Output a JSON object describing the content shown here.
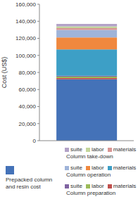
{
  "chart_data": {
    "type": "bar",
    "stacked": true,
    "ylabel": "Cost (US$)",
    "categories": [
      null
    ],
    "ylim": [
      0,
      160000
    ],
    "yticks": [
      0,
      {
        "value": 20000,
        "label": "20,000"
      },
      {
        "value": 40000,
        "label": "40,000"
      },
      {
        "value": 60000,
        "label": "60,000"
      },
      {
        "value": 80000,
        "label": "80,000"
      },
      {
        "value": 100000,
        "label": "100,000"
      },
      {
        "value": 120000,
        "label": "120,000"
      },
      {
        "value": 140000,
        "label": "140,000"
      },
      {
        "value": 160000,
        "label": "160,000"
      }
    ],
    "grid": false,
    "tick_labels": "y",
    "series": [
      {
        "name": "Prepacked column and resin cost",
        "color": "#4472b8",
        "values": [
          72000
        ]
      },
      {
        "group": "Column preparation",
        "name": "materials",
        "color": "#c0504d",
        "values": [
          1500
        ]
      },
      {
        "group": "Column preparation",
        "name": "labor",
        "color": "#9bbb59",
        "values": [
          1500
        ]
      },
      {
        "group": "Column preparation",
        "name": "suite",
        "color": "#8064a2",
        "values": [
          1000
        ]
      },
      {
        "group": "Column operation",
        "name": "materials",
        "color": "#3d9fc6",
        "values": [
          31000
        ]
      },
      {
        "group": "Column operation",
        "name": "labor",
        "color": "#f0883e",
        "values": [
          14000
        ]
      },
      {
        "group": "Column operation",
        "name": "suite",
        "color": "#9fb4d9",
        "values": [
          9000
        ]
      },
      {
        "group": "Column take-down",
        "name": "materials",
        "color": "#d99694",
        "values": [
          2000
        ]
      },
      {
        "group": "Column take-down",
        "name": "labor",
        "color": "#c3d69b",
        "values": [
          2000
        ]
      },
      {
        "group": "Column take-down",
        "name": "suite",
        "color": "#b3a2c7",
        "values": [
          3000
        ]
      }
    ]
  }
}
